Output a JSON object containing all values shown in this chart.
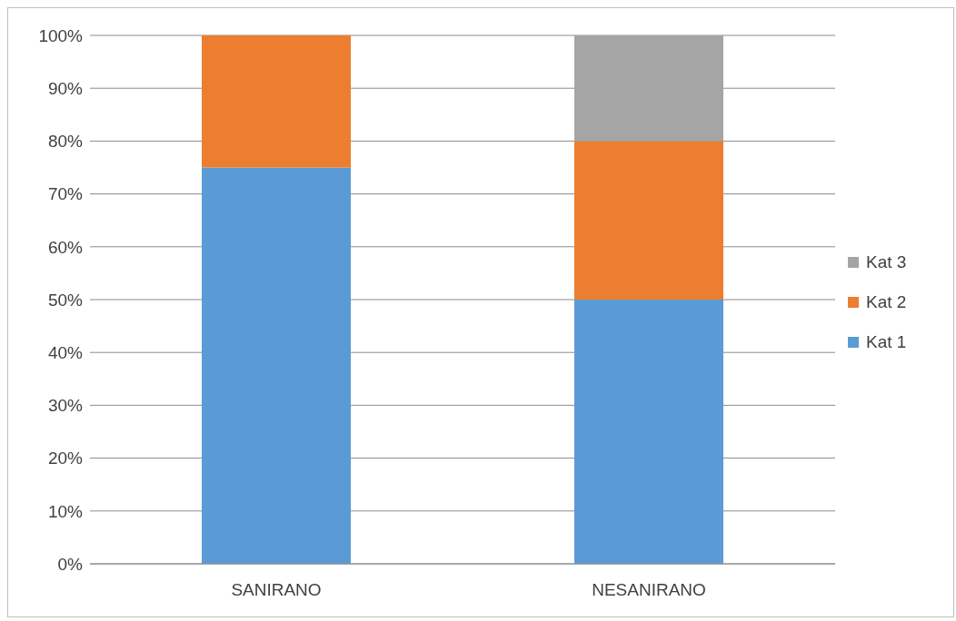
{
  "chart_data": {
    "type": "bar",
    "stacked": true,
    "categories": [
      "SANIRANO",
      "NESANIRANO"
    ],
    "series": [
      {
        "name": "Kat 1",
        "color": "#5b9bd5",
        "values": [
          75,
          50
        ]
      },
      {
        "name": "Kat 2",
        "color": "#ed7d31",
        "values": [
          25,
          30
        ]
      },
      {
        "name": "Kat 3",
        "color": "#a5a5a5",
        "values": [
          0,
          20
        ]
      }
    ],
    "ylim": [
      0,
      100
    ],
    "yticks": [
      {
        "value": 0,
        "label": "0%"
      },
      {
        "value": 10,
        "label": "10%"
      },
      {
        "value": 20,
        "label": "20%"
      },
      {
        "value": 30,
        "label": "30%"
      },
      {
        "value": 40,
        "label": "40%"
      },
      {
        "value": 50,
        "label": "50%"
      },
      {
        "value": 60,
        "label": "60%"
      },
      {
        "value": 70,
        "label": "70%"
      },
      {
        "value": 80,
        "label": "80%"
      },
      {
        "value": 90,
        "label": "90%"
      },
      {
        "value": 100,
        "label": "100%"
      }
    ],
    "grid": "y",
    "legend": "right"
  }
}
